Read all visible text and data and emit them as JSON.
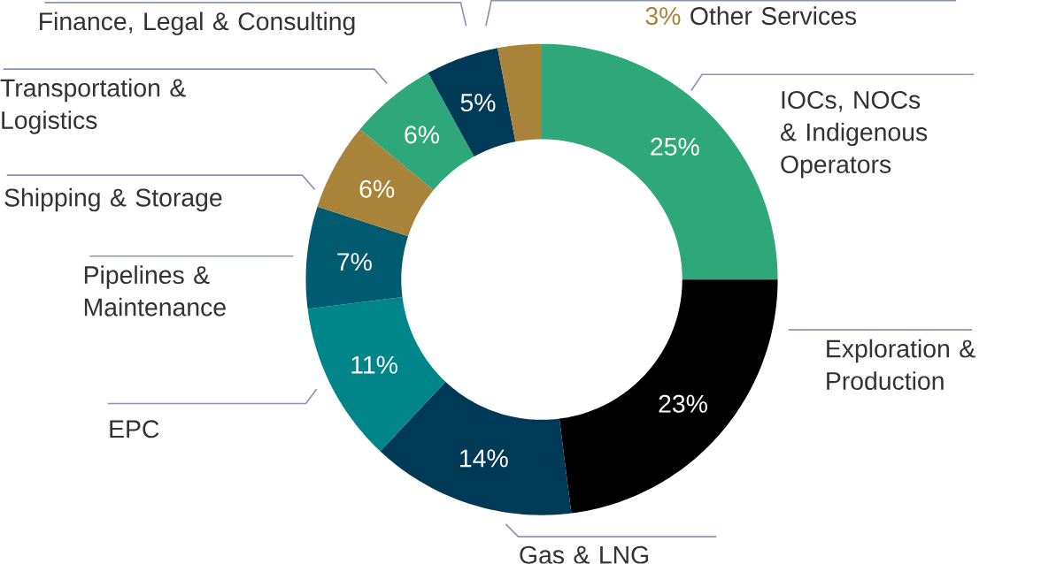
{
  "chart_data": {
    "type": "donut",
    "categories": [
      "IOCs, NOCs & Indigenous Operators",
      "Exploration & Production",
      "Gas & LNG",
      "EPC",
      "Pipelines & Maintenance",
      "Shipping & Storage",
      "Transportation & Logistics",
      "Finance, Legal & Consulting",
      "Other Services"
    ],
    "values": [
      25,
      23,
      14,
      11,
      7,
      6,
      6,
      5,
      3
    ],
    "colors": [
      "#2ea87a",
      "#000000",
      "#003a57",
      "#00858a",
      "#005a70",
      "#a88339",
      "#2ea87a",
      "#003a57",
      "#a88339"
    ],
    "value_labels": [
      "25%",
      "23%",
      "14%",
      "11%",
      "7%",
      "6%",
      "6%",
      "5%",
      "3%"
    ]
  }
}
